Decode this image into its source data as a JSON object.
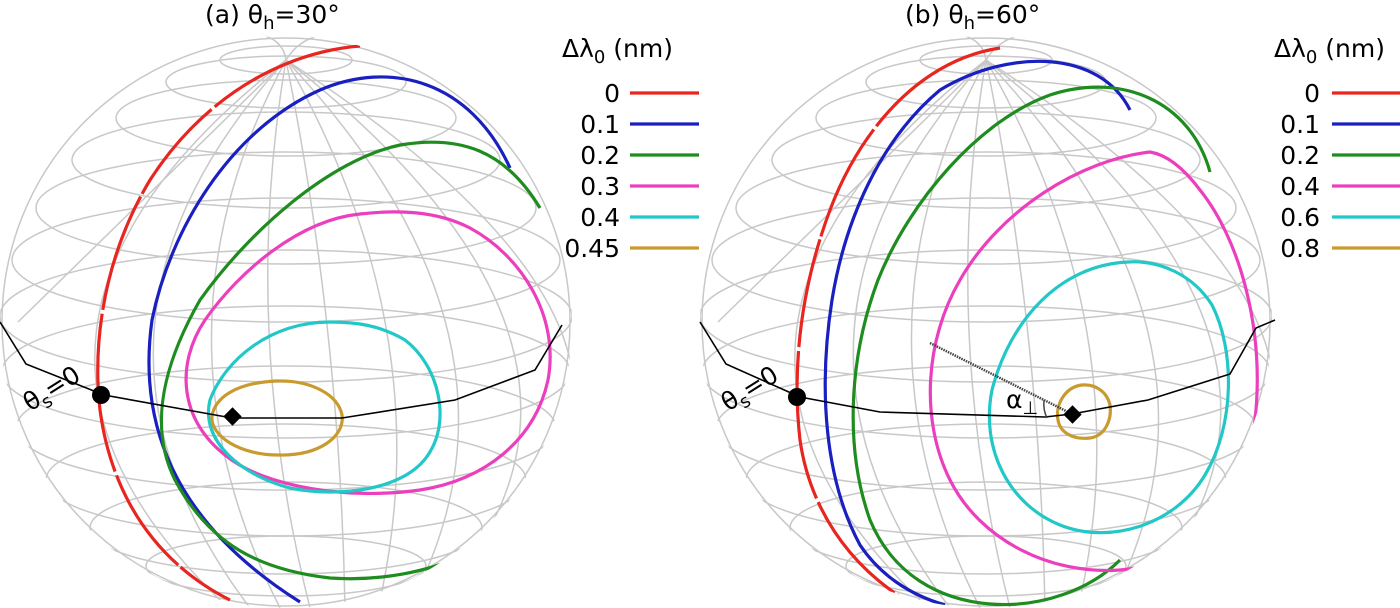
{
  "panels": [
    {
      "title": {
        "prefix": "(a) θ",
        "sub": "h",
        "suffix": "=30°"
      },
      "legend": {
        "title": {
          "prefix": "Δλ",
          "sub": "0",
          "suffix": " (nm)"
        },
        "items": [
          {
            "label": "0",
            "color": "#e8251f"
          },
          {
            "label": "0.1",
            "color": "#1a1fc0"
          },
          {
            "label": "0.2",
            "color": "#1e8c1e"
          },
          {
            "label": "0.3",
            "color": "#ec3fbd"
          },
          {
            "label": "0.4",
            "color": "#22c7c7"
          },
          {
            "label": "0.45",
            "color": "#c99a2e"
          }
        ]
      },
      "annotations": {
        "theta_s": {
          "prefix": "θ",
          "sub": "s",
          "suffix": "=0"
        }
      }
    },
    {
      "title": {
        "prefix": "(b) θ",
        "sub": "h",
        "suffix": "=60°"
      },
      "legend": {
        "title": {
          "prefix": "Δλ",
          "sub": "0",
          "suffix": " (nm)"
        },
        "items": [
          {
            "label": "0",
            "color": "#e8251f"
          },
          {
            "label": "0.1",
            "color": "#1a1fc0"
          },
          {
            "label": "0.2",
            "color": "#1e8c1e"
          },
          {
            "label": "0.4",
            "color": "#ec3fbd"
          },
          {
            "label": "0.6",
            "color": "#22c7c7"
          },
          {
            "label": "0.8",
            "color": "#c99a2e"
          }
        ]
      },
      "annotations": {
        "theta_s": {
          "prefix": "θ",
          "sub": "s",
          "suffix": "=0"
        },
        "alpha": {
          "prefix": "α",
          "sub": "⊥",
          "suffix": ""
        }
      }
    }
  ]
}
